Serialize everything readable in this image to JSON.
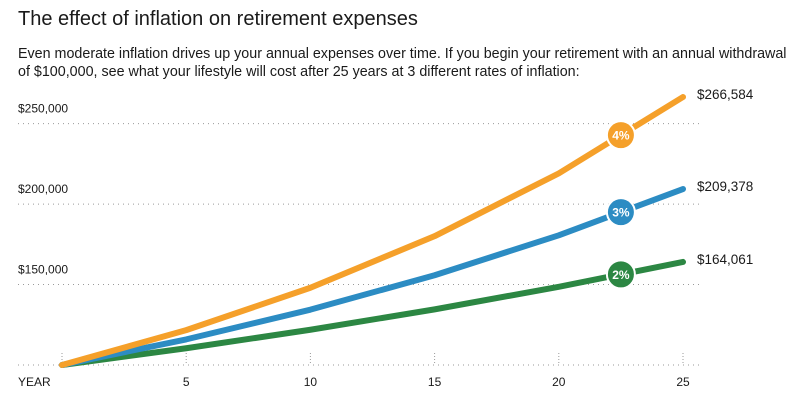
{
  "chart_data": {
    "type": "line",
    "title": "The effect of inflation on retirement expenses",
    "subtitle": "Even moderate inflation drives up your annual expenses over time. If you begin your retirement with an annual withdrawal of $100,000, see what your lifestyle will cost after 25 years at 3 different rates of inflation:",
    "xlabel": "YEAR",
    "ylabel": "",
    "x": [
      0,
      5,
      10,
      15,
      20,
      25
    ],
    "x_ticks": [
      "5",
      "10",
      "15",
      "20",
      "25"
    ],
    "y_ticks": [
      {
        "value": 150000,
        "label": "$150,000"
      },
      {
        "value": 200000,
        "label": "$200,000"
      },
      {
        "value": 250000,
        "label": "$250,000"
      }
    ],
    "ylim": [
      100000,
      266584
    ],
    "xlim": [
      0,
      25
    ],
    "grid": "dotted horizontal",
    "series": [
      {
        "name": "4%",
        "color": "#f5a02a",
        "values": [
          100000,
          121665,
          148024,
          180094,
          219112,
          266584
        ],
        "end_label": "$266,584",
        "badge_x": 22.5
      },
      {
        "name": "3%",
        "color": "#2c8cc3",
        "values": [
          100000,
          115927,
          134392,
          155797,
          180611,
          209378
        ],
        "end_label": "$209,378",
        "badge_x": 22.5
      },
      {
        "name": "2%",
        "color": "#2c8743",
        "values": [
          100000,
          110408,
          121899,
          134587,
          148595,
          164061
        ],
        "end_label": "$164,061",
        "badge_x": 22.5
      }
    ]
  }
}
